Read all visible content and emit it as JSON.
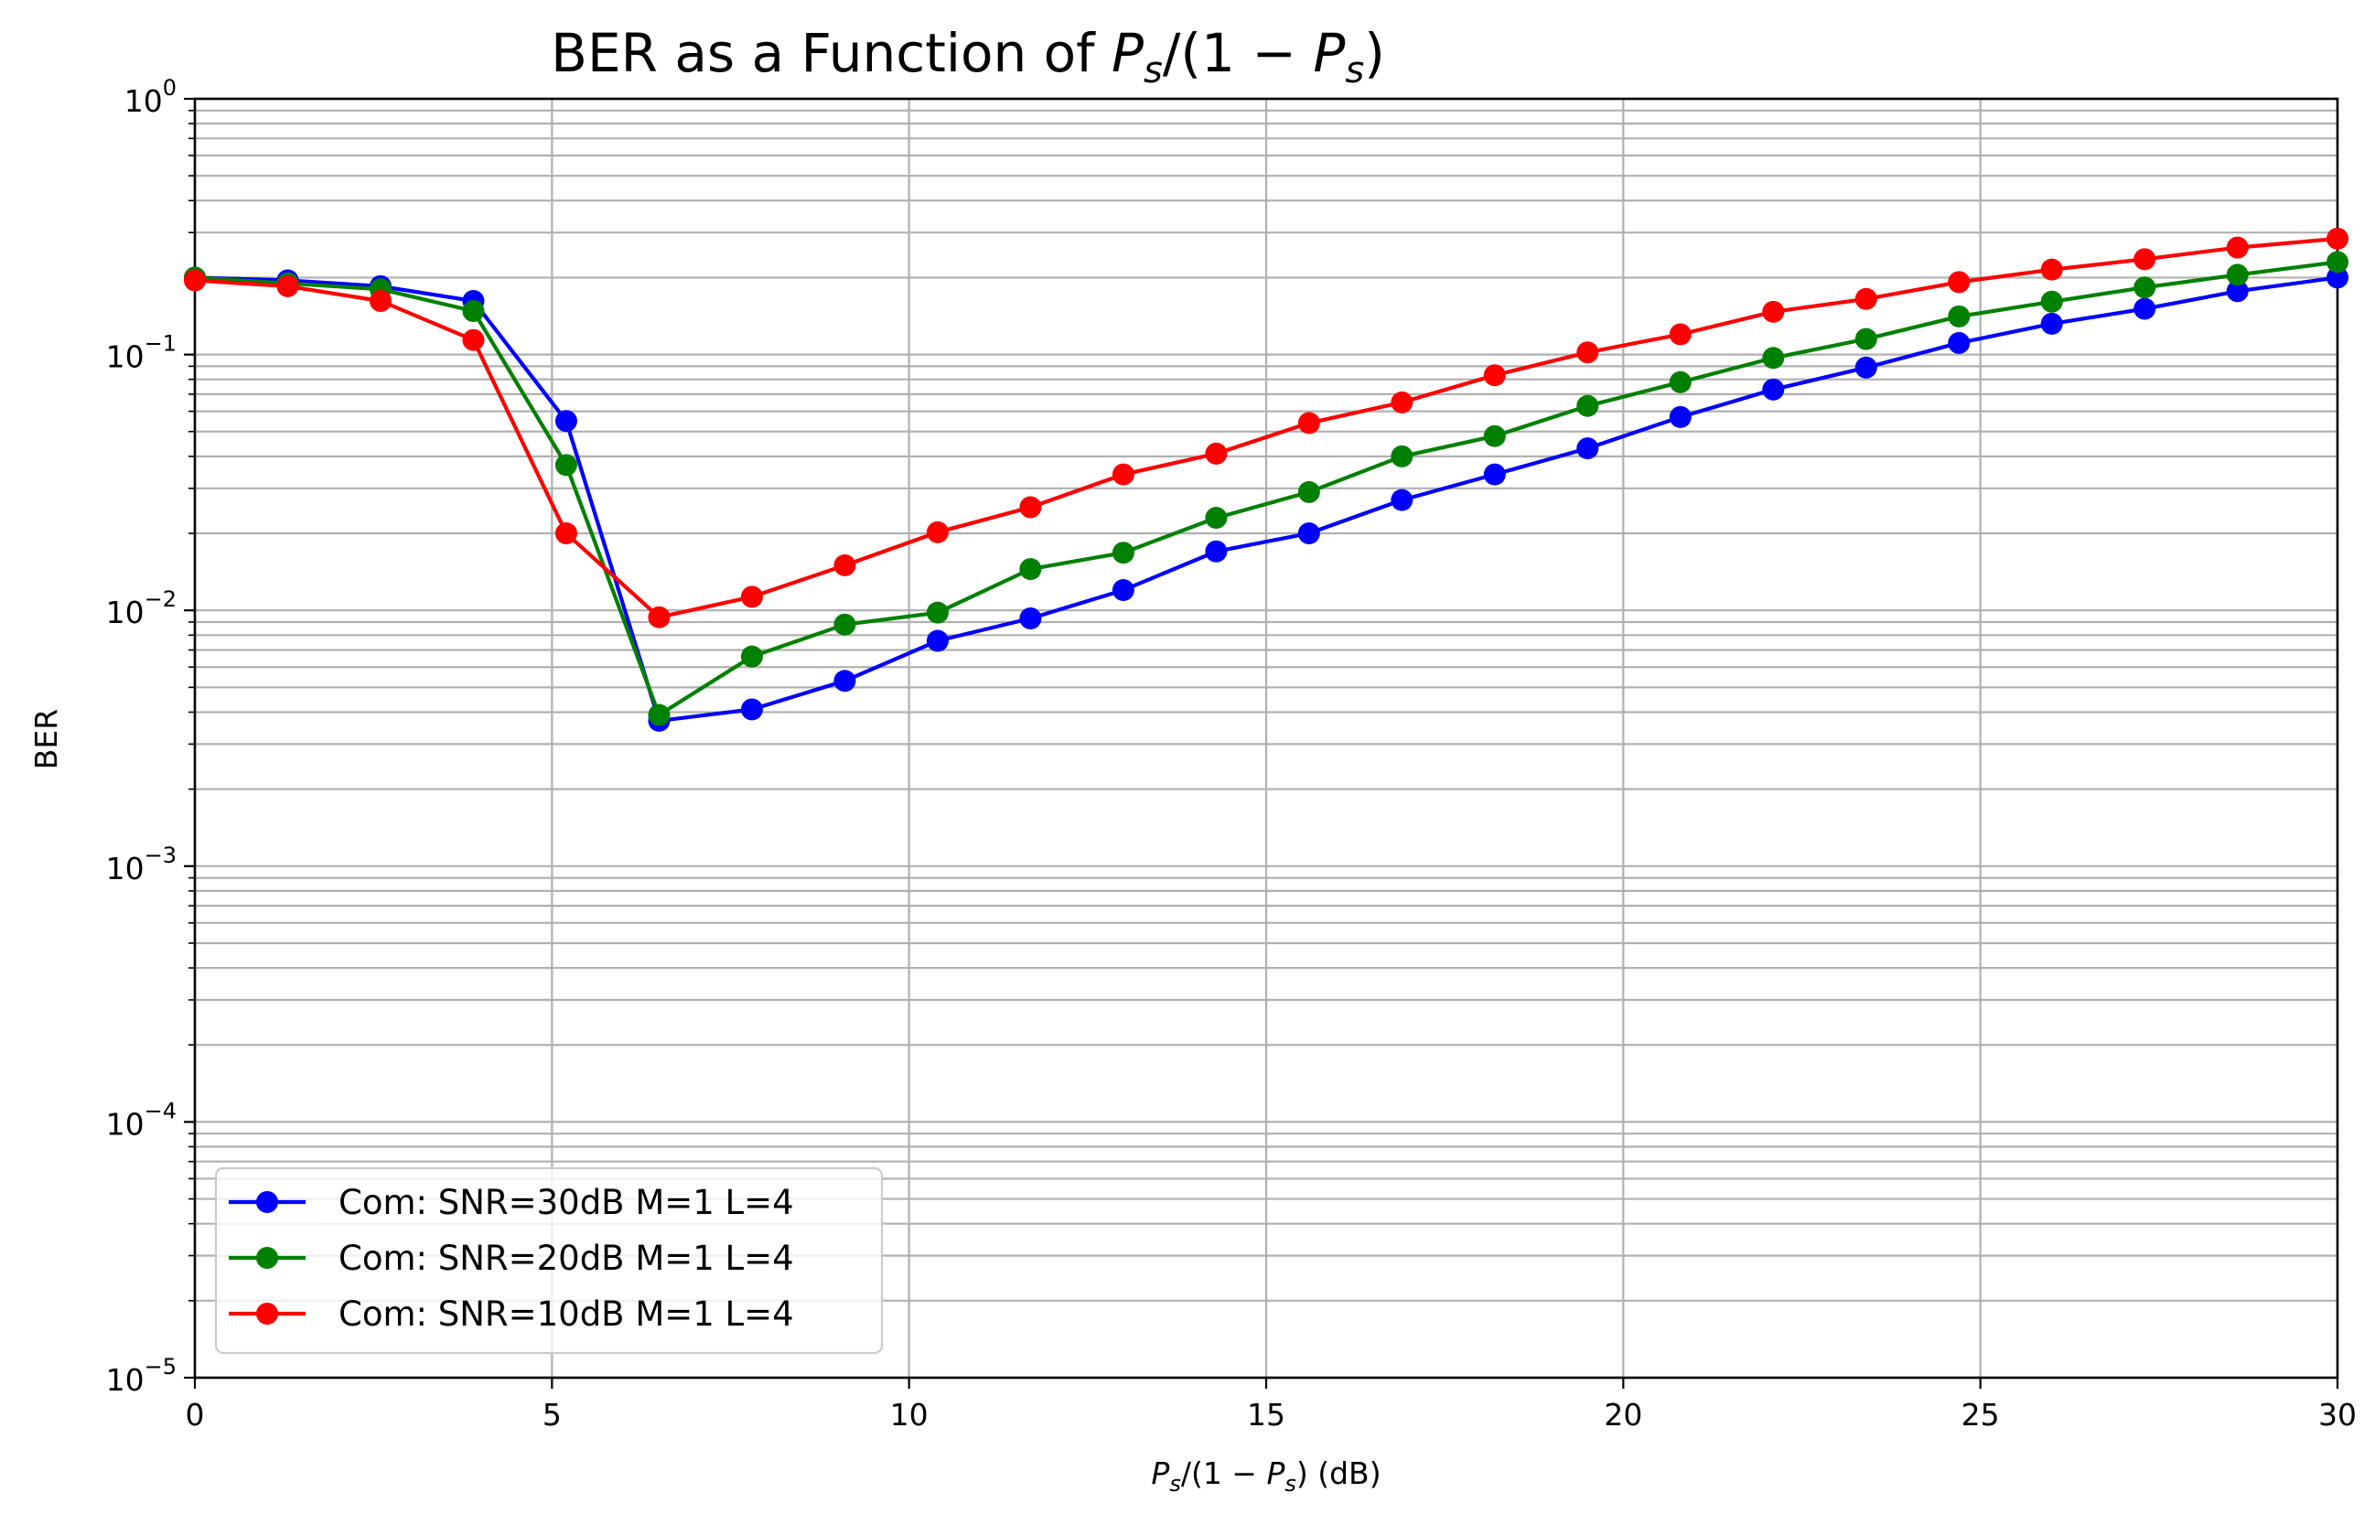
{
  "chart_data": {
    "type": "line",
    "title": {
      "prefix": "BER as a Function of ",
      "math": true
    },
    "xlabel": {
      "suffix": " (dB)",
      "math": true
    },
    "ylabel": "BER",
    "xlim": [
      0,
      30
    ],
    "ylim": [
      1e-05,
      1
    ],
    "yscale": "log",
    "grid": "on (major and minor)",
    "legend_location": "lower-left",
    "x_ticks": [
      "0",
      "5",
      "10",
      "15",
      "20",
      "25",
      "30"
    ],
    "y_tick_base": "10",
    "y_tick_exponents": [
      "0",
      "−1",
      "−2",
      "−3",
      "−4",
      "−5"
    ],
    "x": [
      0,
      1.3,
      2.6,
      3.9,
      5.2,
      6.5,
      7.8,
      9.1,
      10.4,
      11.7,
      13.0,
      14.3,
      15.6,
      16.9,
      18.2,
      19.5,
      20.8,
      22.1,
      23.4,
      24.7,
      26.0,
      27.3,
      28.6,
      30.0
    ],
    "series": [
      {
        "name": "Com: SNR=30dB M=1  L=4",
        "color": "#0000ff",
        "values": [
          0.2,
          0.195,
          0.185,
          0.162,
          0.055,
          0.0037,
          0.0041,
          0.0053,
          0.0076,
          0.0093,
          0.012,
          0.017,
          0.02,
          0.027,
          0.034,
          0.043,
          0.057,
          0.073,
          0.089,
          0.111,
          0.132,
          0.151,
          0.177,
          0.2
        ]
      },
      {
        "name": "Com: SNR=20dB M=1  L=4",
        "color": "#008000",
        "values": [
          0.2,
          0.19,
          0.18,
          0.148,
          0.037,
          0.0039,
          0.0066,
          0.0088,
          0.0098,
          0.0145,
          0.0168,
          0.023,
          0.029,
          0.04,
          0.048,
          0.063,
          0.078,
          0.097,
          0.115,
          0.141,
          0.161,
          0.183,
          0.205,
          0.23
        ]
      },
      {
        "name": "Com: SNR=10dB M=1  L=4",
        "color": "#ff0000",
        "values": [
          0.195,
          0.185,
          0.162,
          0.114,
          0.02,
          0.0094,
          0.0113,
          0.015,
          0.0202,
          0.0253,
          0.034,
          0.041,
          0.054,
          0.065,
          0.083,
          0.102,
          0.12,
          0.147,
          0.165,
          0.192,
          0.215,
          0.236,
          0.262,
          0.284
        ]
      }
    ]
  }
}
